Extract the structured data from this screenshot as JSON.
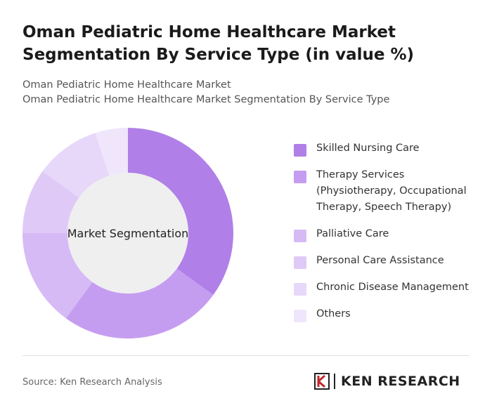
{
  "chart_data": {
    "type": "donut",
    "title": "Oman Pediatric Home Healthcare Market Segmentation By Service Type (in value %)",
    "subtitle": [
      "Oman Pediatric Home Healthcare Market",
      "Oman Pediatric Home Healthcare Market Segmentation By Service Type"
    ],
    "center_label": "Market Segmentation",
    "categories": [
      "Skilled Nursing Care",
      "Therapy Services (Physiotherapy, Occupational Therapy, Speech Therapy)",
      "Palliative Care",
      "Personal Care Assistance",
      "Chronic Disease Management",
      "Others"
    ],
    "values": [
      35,
      25,
      15,
      10,
      10,
      5
    ],
    "colors": [
      "#b07fe8",
      "#c59df0",
      "#d6baf5",
      "#dfcaf7",
      "#e7d8f9",
      "#efe6fb"
    ],
    "source": "Source: Ken Research Analysis",
    "logo": "KEN RESEARCH"
  }
}
